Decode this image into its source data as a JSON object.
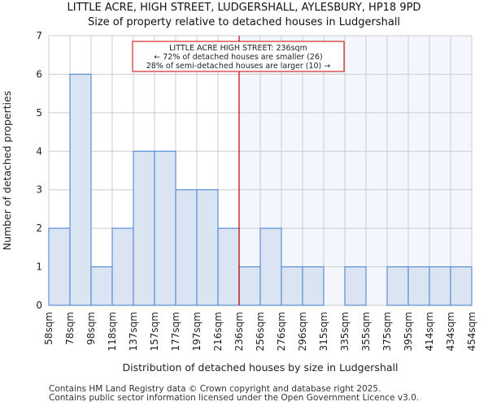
{
  "chart_data": {
    "type": "bar",
    "title": "LITTLE ACRE, HIGH STREET, LUDGERSHALL, AYLESBURY, HP18 9PD",
    "subtitle": "Size of property relative to detached houses in Ludgershall",
    "xlabel": "Distribution of detached houses by size in Ludgershall",
    "ylabel": "Number of detached properties",
    "bin_edges": [
      "58sqm",
      "78sqm",
      "98sqm",
      "118sqm",
      "137sqm",
      "157sqm",
      "177sqm",
      "197sqm",
      "216sqm",
      "236sqm",
      "256sqm",
      "276sqm",
      "296sqm",
      "315sqm",
      "335sqm",
      "355sqm",
      "375sqm",
      "395sqm",
      "414sqm",
      "434sqm",
      "454sqm"
    ],
    "values": [
      2,
      6,
      1,
      2,
      4,
      4,
      3,
      3,
      2,
      1,
      2,
      1,
      1,
      0,
      1,
      0,
      1,
      1,
      1,
      1
    ],
    "ylim": [
      0,
      7
    ],
    "yticks": [
      "0",
      "1",
      "2",
      "3",
      "4",
      "5",
      "6",
      "7"
    ],
    "grid": true,
    "marker_edge_index": 9,
    "annotation": [
      "LITTLE ACRE HIGH STREET: 236sqm",
      "← 72% of detached houses are smaller (26)",
      "28% of semi-detached houses are larger (10) →"
    ],
    "colors": {
      "bar": "#dae4f3",
      "bar_edge": "#5b8fd6",
      "marker": "#cc0000",
      "highlight_bg": "#f3f6fd"
    }
  },
  "footer": [
    "Contains HM Land Registry data © Crown copyright and database right 2025.",
    "Contains public sector information licensed under the Open Government Licence v3.0."
  ]
}
